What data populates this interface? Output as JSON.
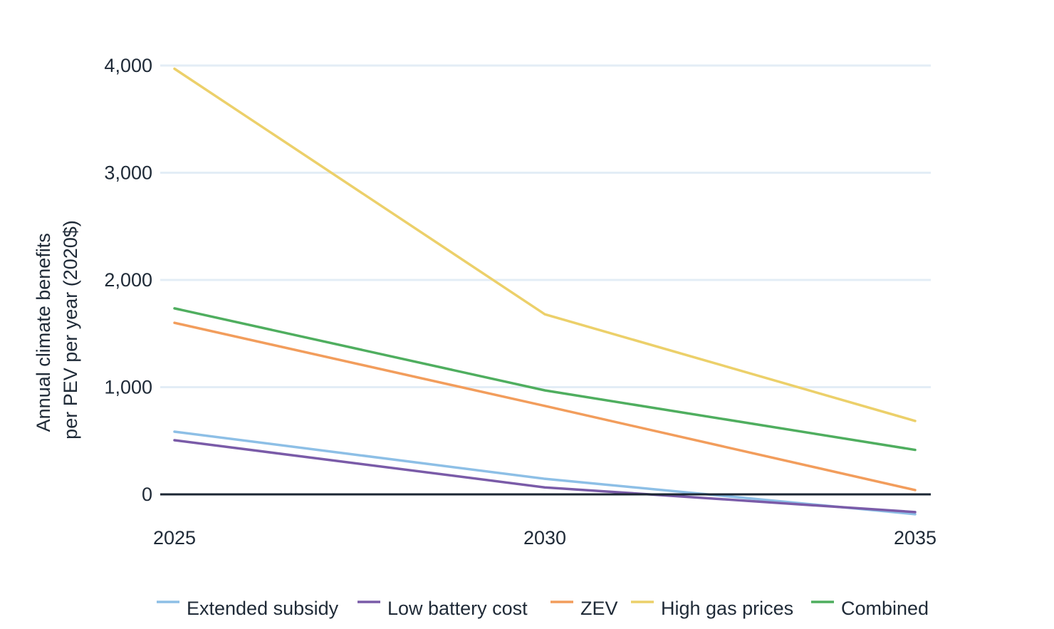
{
  "chart_data": {
    "type": "line",
    "x": [
      2025,
      2030,
      2035
    ],
    "xlim": [
      2025,
      2035
    ],
    "ylim": [
      -200,
      4000
    ],
    "y_ticks": [
      0,
      1000,
      2000,
      3000,
      4000
    ],
    "y_tick_labels": [
      "0",
      "1,000",
      "2,000",
      "3,000",
      "4,000"
    ],
    "x_tick_labels": [
      "2025",
      "2030",
      "2035"
    ],
    "ylabel_lines": [
      "Annual climate benefits",
      "per PEV per year (2020$)"
    ],
    "xlabel": "",
    "grid": true,
    "legend_position": "bottom",
    "zero_line_color": "#1b2633",
    "grid_color": "#e3edf6",
    "series": [
      {
        "name": "Extended subsidy",
        "color": "#8dbfe6",
        "values": [
          585,
          145,
          -185
        ]
      },
      {
        "name": "Low battery cost",
        "color": "#7a5ba8",
        "values": [
          505,
          65,
          -165
        ]
      },
      {
        "name": "ZEV",
        "color": "#f29d5c",
        "values": [
          1600,
          825,
          40
        ]
      },
      {
        "name": "High gas prices",
        "color": "#ecd06a",
        "values": [
          3970,
          1680,
          685
        ]
      },
      {
        "name": "Combined",
        "color": "#4fae5f",
        "values": [
          1735,
          970,
          415
        ]
      }
    ]
  }
}
